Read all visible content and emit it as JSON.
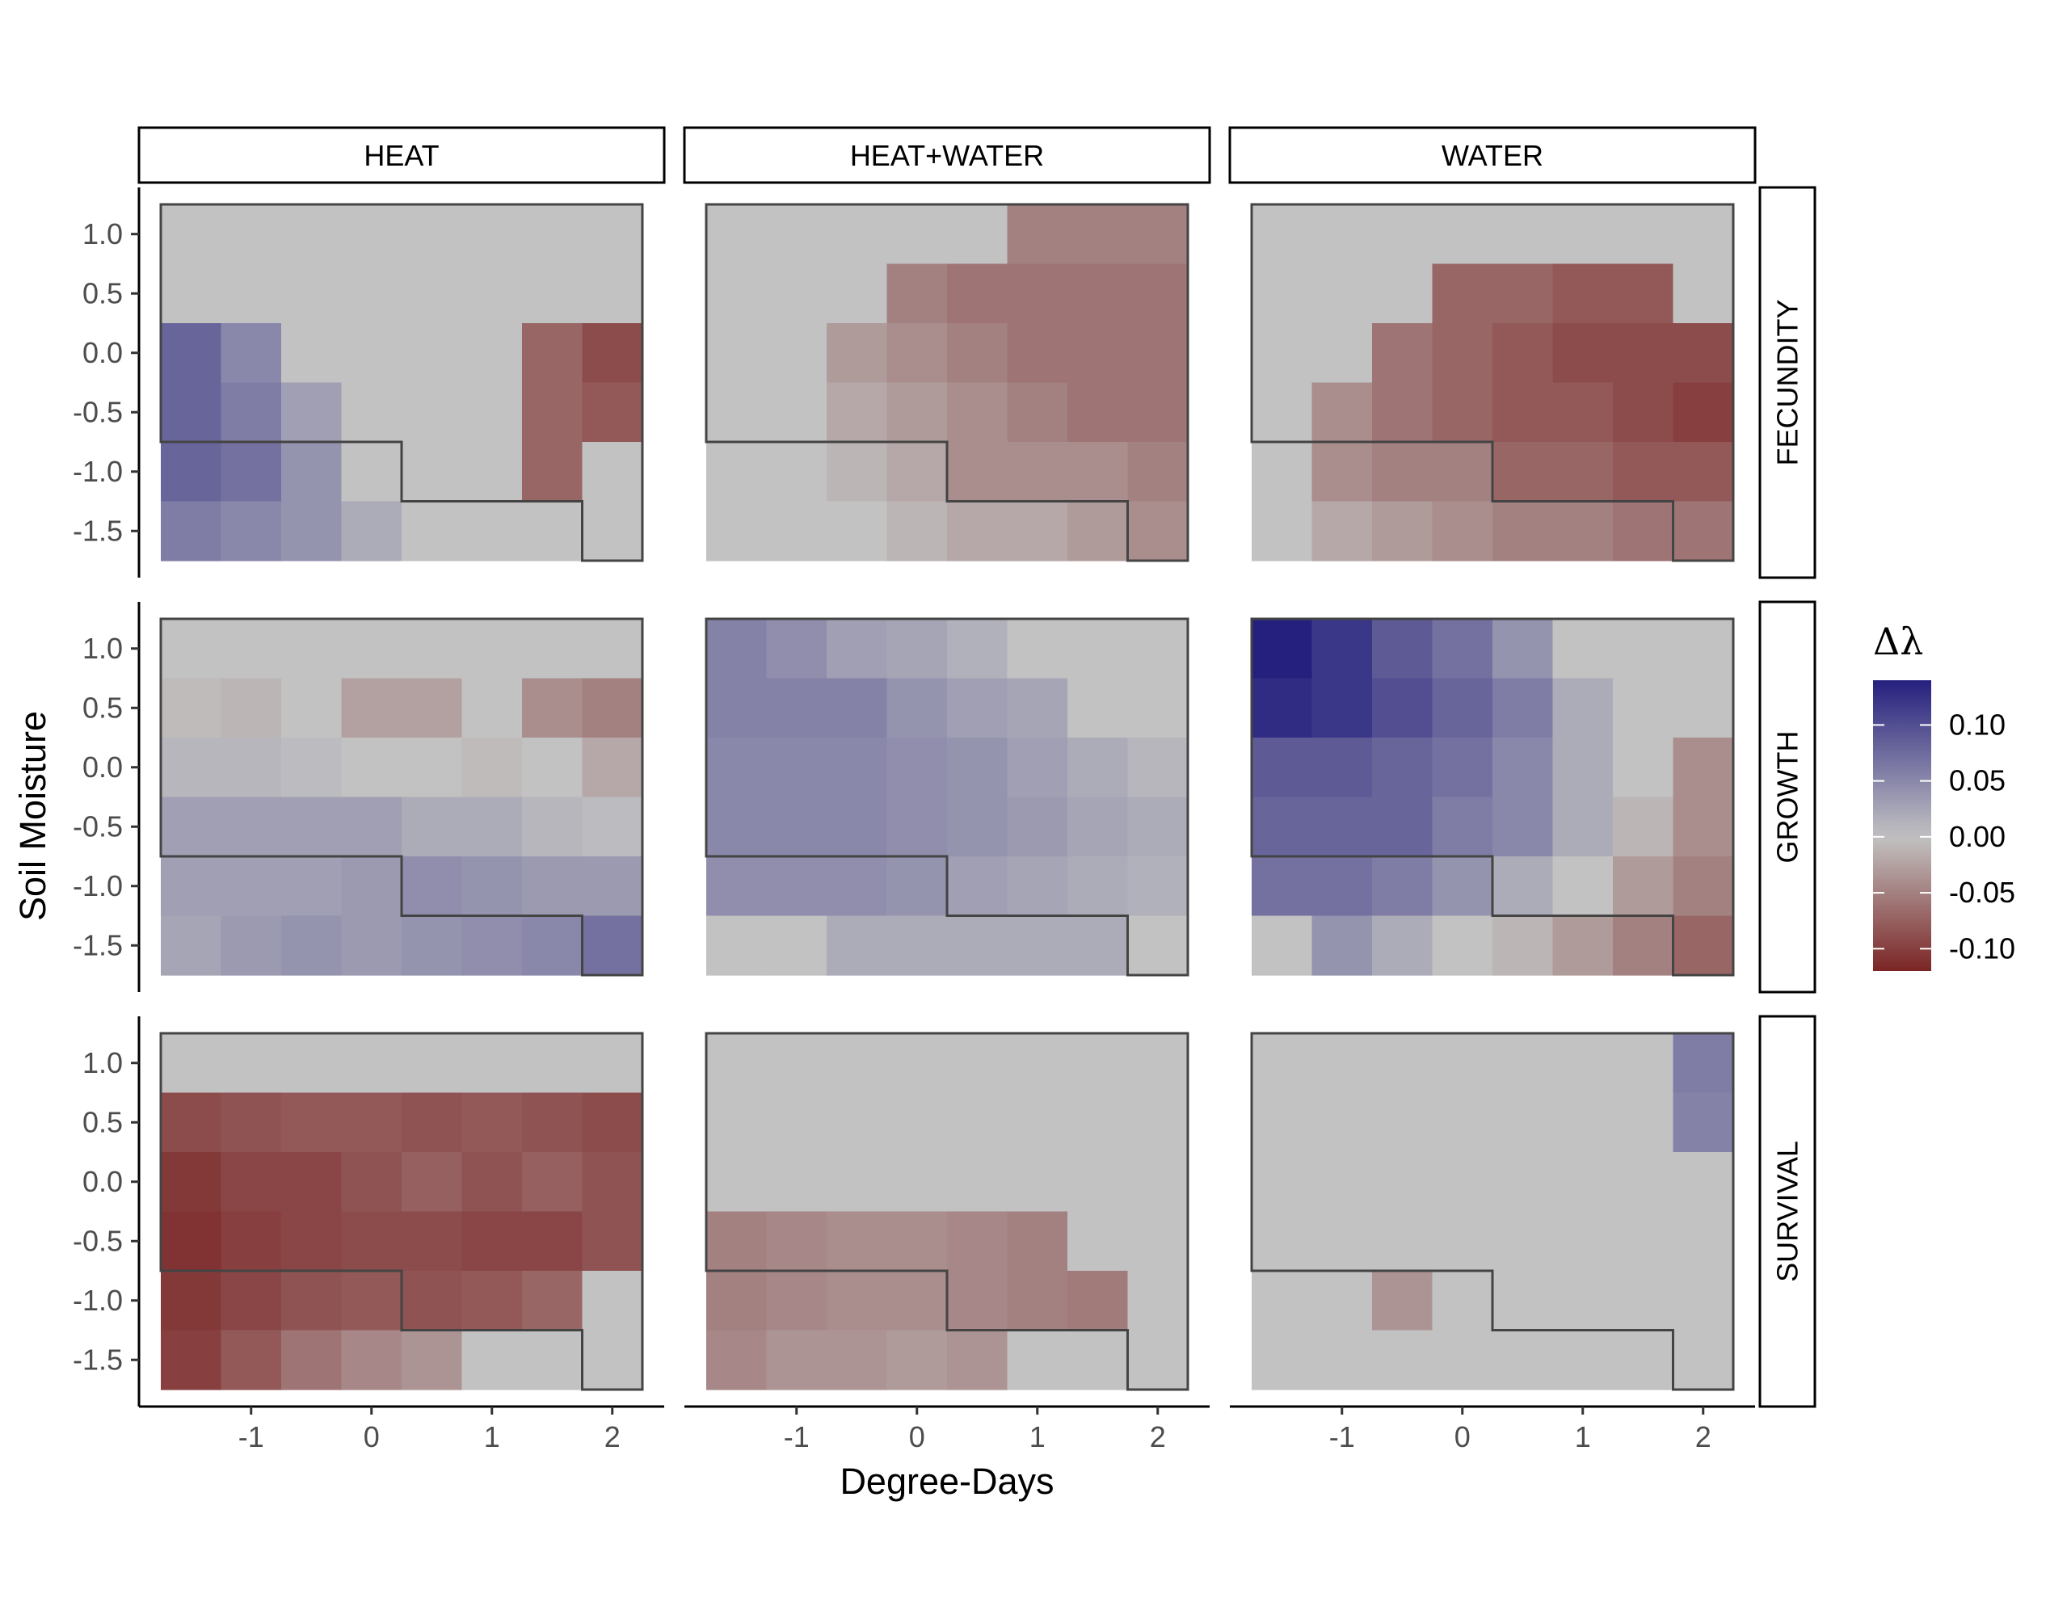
{
  "chart_data": {
    "type": "heatmap",
    "xlabel": "Degree-Days",
    "ylabel": "Soil Moisture",
    "columns": [
      "HEAT",
      "HEAT+WATER",
      "WATER"
    ],
    "rows": [
      "FECUNDITY",
      "GROWTH",
      "SURVIVAL"
    ],
    "x": [
      -1.5,
      -1.0,
      -0.5,
      0.0,
      0.5,
      1.0,
      1.5,
      2.0
    ],
    "y": [
      1.0,
      0.5,
      0.0,
      -0.5,
      -1.0,
      -1.5
    ],
    "x_ticks": [
      "-1",
      "0",
      "1",
      "2"
    ],
    "x_tick_values": [
      -1,
      0,
      1,
      2
    ],
    "y_ticks": [
      "1.0",
      "0.5",
      "0.0",
      "-0.5",
      "-1.0",
      "-1.5"
    ],
    "y_tick_values": [
      1.0,
      0.5,
      0.0,
      -0.5,
      -1.0,
      -1.5
    ],
    "xlim": [
      -1.75,
      2.25
    ],
    "ylim": [
      -1.75,
      1.25
    ],
    "legend": {
      "title": "Δλ",
      "position": "right",
      "ticks": [
        "0.10",
        "0.05",
        "0.00",
        "-0.05",
        "-0.10"
      ],
      "tick_values": [
        0.1,
        0.05,
        0.0,
        -0.05,
        -0.1
      ],
      "range": [
        -0.12,
        0.14
      ],
      "low_color": "#7b2525",
      "mid_color": "#c2c2c2",
      "high_color": "#25207e"
    },
    "outline_note": "Each panel has an outline of the sampled climate domain",
    "outline_points": [
      [
        -1.75,
        1.25
      ],
      [
        2.25,
        1.25
      ],
      [
        2.25,
        -1.75
      ],
      [
        1.75,
        -1.75
      ],
      [
        1.75,
        -1.25
      ],
      [
        0.25,
        -1.25
      ],
      [
        0.25,
        -0.75
      ],
      [
        -1.75,
        -0.75
      ]
    ],
    "panels": [
      {
        "row": "FECUNDITY",
        "column": "HEAT",
        "values": [
          [
            0,
            0,
            0,
            0,
            0,
            0,
            0,
            0
          ],
          [
            0,
            0,
            0,
            0,
            0,
            0,
            0,
            0
          ],
          [
            0.08,
            0.05,
            0,
            0,
            0,
            0,
            -0.07,
            -0.09
          ],
          [
            0.08,
            0.06,
            0.03,
            0,
            0,
            0,
            -0.07,
            -0.08
          ],
          [
            0.08,
            0.07,
            0.04,
            0,
            0,
            0,
            -0.07,
            0
          ],
          [
            0.06,
            0.05,
            0.04,
            0.02,
            0,
            0,
            0,
            0
          ]
        ]
      },
      {
        "row": "FECUNDITY",
        "column": "HEAT+WATER",
        "values": [
          [
            0,
            0,
            0,
            0,
            0,
            -0.05,
            -0.05,
            -0.05
          ],
          [
            0,
            0,
            0,
            -0.05,
            -0.06,
            -0.06,
            -0.06,
            -0.06
          ],
          [
            0,
            0,
            -0.03,
            -0.04,
            -0.05,
            -0.06,
            -0.06,
            -0.06
          ],
          [
            0,
            0,
            -0.02,
            -0.03,
            -0.04,
            -0.05,
            -0.06,
            -0.06
          ],
          [
            0,
            0,
            -0.01,
            -0.02,
            -0.04,
            -0.04,
            -0.04,
            -0.05
          ],
          [
            0,
            0,
            0,
            -0.01,
            -0.02,
            -0.02,
            -0.03,
            -0.04
          ]
        ]
      },
      {
        "row": "FECUNDITY",
        "column": "WATER",
        "values": [
          [
            0,
            0,
            0,
            0,
            0,
            0,
            0,
            0
          ],
          [
            0,
            0,
            0,
            -0.07,
            -0.07,
            -0.08,
            -0.08,
            0
          ],
          [
            0,
            0,
            -0.06,
            -0.07,
            -0.08,
            -0.09,
            -0.09,
            -0.09
          ],
          [
            0,
            -0.04,
            -0.06,
            -0.07,
            -0.08,
            -0.08,
            -0.09,
            -0.1
          ],
          [
            0,
            -0.04,
            -0.05,
            -0.05,
            -0.07,
            -0.07,
            -0.08,
            -0.08
          ],
          [
            0,
            -0.02,
            -0.03,
            -0.04,
            -0.05,
            -0.05,
            -0.06,
            -0.06
          ]
        ]
      },
      {
        "row": "GROWTH",
        "column": "HEAT",
        "values": [
          [
            0,
            0,
            0,
            0,
            0,
            0,
            0,
            0
          ],
          [
            -0.005,
            -0.01,
            0,
            -0.025,
            -0.025,
            0,
            -0.04,
            -0.05
          ],
          [
            0.01,
            0.01,
            0.005,
            0,
            0,
            -0.005,
            0,
            -0.02
          ],
          [
            0.03,
            0.03,
            0.03,
            0.03,
            0.02,
            0.02,
            0.01,
            0.005
          ],
          [
            0.03,
            0.03,
            0.03,
            0.035,
            0.045,
            0.04,
            0.035,
            0.035
          ],
          [
            0.025,
            0.035,
            0.04,
            0.035,
            0.04,
            0.045,
            0.05,
            0.07
          ]
        ]
      },
      {
        "row": "GROWTH",
        "column": "HEAT+WATER",
        "values": [
          [
            0.055,
            0.045,
            0.03,
            0.025,
            0.015,
            0,
            0,
            0
          ],
          [
            0.055,
            0.055,
            0.055,
            0.04,
            0.03,
            0.025,
            0,
            0
          ],
          [
            0.05,
            0.05,
            0.05,
            0.045,
            0.04,
            0.03,
            0.02,
            0.01
          ],
          [
            0.05,
            0.05,
            0.05,
            0.045,
            0.04,
            0.035,
            0.025,
            0.02
          ],
          [
            0.045,
            0.045,
            0.045,
            0.04,
            0.03,
            0.025,
            0.02,
            0.015
          ],
          [
            0,
            0,
            0.02,
            0.02,
            0.02,
            0.02,
            0.02,
            0
          ]
        ]
      },
      {
        "row": "GROWTH",
        "column": "WATER",
        "values": [
          [
            0.14,
            0.12,
            0.09,
            0.07,
            0.04,
            0,
            0,
            0
          ],
          [
            0.13,
            0.12,
            0.1,
            0.08,
            0.06,
            0.02,
            0,
            0
          ],
          [
            0.09,
            0.09,
            0.08,
            0.07,
            0.05,
            0.02,
            0,
            -0.04
          ],
          [
            0.08,
            0.08,
            0.08,
            0.06,
            0.05,
            0.02,
            -0.01,
            -0.04
          ],
          [
            0.07,
            0.07,
            0.06,
            0.04,
            0.02,
            0,
            -0.03,
            -0.05
          ],
          [
            0,
            0.04,
            0.02,
            0,
            -0.01,
            -0.03,
            -0.05,
            -0.07
          ]
        ]
      },
      {
        "row": "SURVIVAL",
        "column": "HEAT",
        "values": [
          [
            0,
            0,
            0,
            0,
            0,
            0,
            0,
            0
          ],
          [
            -0.09,
            -0.085,
            -0.08,
            -0.08,
            -0.085,
            -0.08,
            -0.085,
            -0.09
          ],
          [
            -0.105,
            -0.095,
            -0.095,
            -0.085,
            -0.075,
            -0.085,
            -0.075,
            -0.085
          ],
          [
            -0.11,
            -0.1,
            -0.095,
            -0.09,
            -0.09,
            -0.095,
            -0.095,
            -0.085
          ],
          [
            -0.105,
            -0.095,
            -0.085,
            -0.08,
            -0.085,
            -0.08,
            -0.07,
            0
          ],
          [
            -0.1,
            -0.08,
            -0.06,
            -0.045,
            -0.035,
            0,
            0,
            0
          ]
        ]
      },
      {
        "row": "SURVIVAL",
        "column": "HEAT+WATER",
        "values": [
          [
            0,
            0,
            0,
            0,
            0,
            0,
            0,
            0
          ],
          [
            0,
            0,
            0,
            0,
            0,
            0,
            0,
            0
          ],
          [
            0,
            0,
            0,
            0,
            0,
            0,
            0,
            0
          ],
          [
            -0.05,
            -0.045,
            -0.04,
            -0.04,
            -0.045,
            -0.05,
            0,
            0
          ],
          [
            -0.05,
            -0.045,
            -0.04,
            -0.04,
            -0.045,
            -0.05,
            -0.055,
            0
          ],
          [
            -0.045,
            -0.035,
            -0.035,
            -0.03,
            -0.035,
            0,
            0,
            0
          ]
        ]
      },
      {
        "row": "SURVIVAL",
        "column": "WATER",
        "values": [
          [
            0,
            0,
            0,
            0,
            0,
            0,
            0,
            0.06
          ],
          [
            0,
            0,
            0,
            0,
            0,
            0,
            0,
            0.055
          ],
          [
            0,
            0,
            0,
            0,
            0,
            0,
            0,
            0
          ],
          [
            0,
            0,
            0,
            0,
            0,
            0,
            0,
            0
          ],
          [
            0,
            0,
            -0.035,
            0,
            0,
            0,
            0,
            0
          ],
          [
            0,
            0,
            0,
            0,
            0,
            0,
            0,
            0
          ]
        ]
      }
    ]
  }
}
